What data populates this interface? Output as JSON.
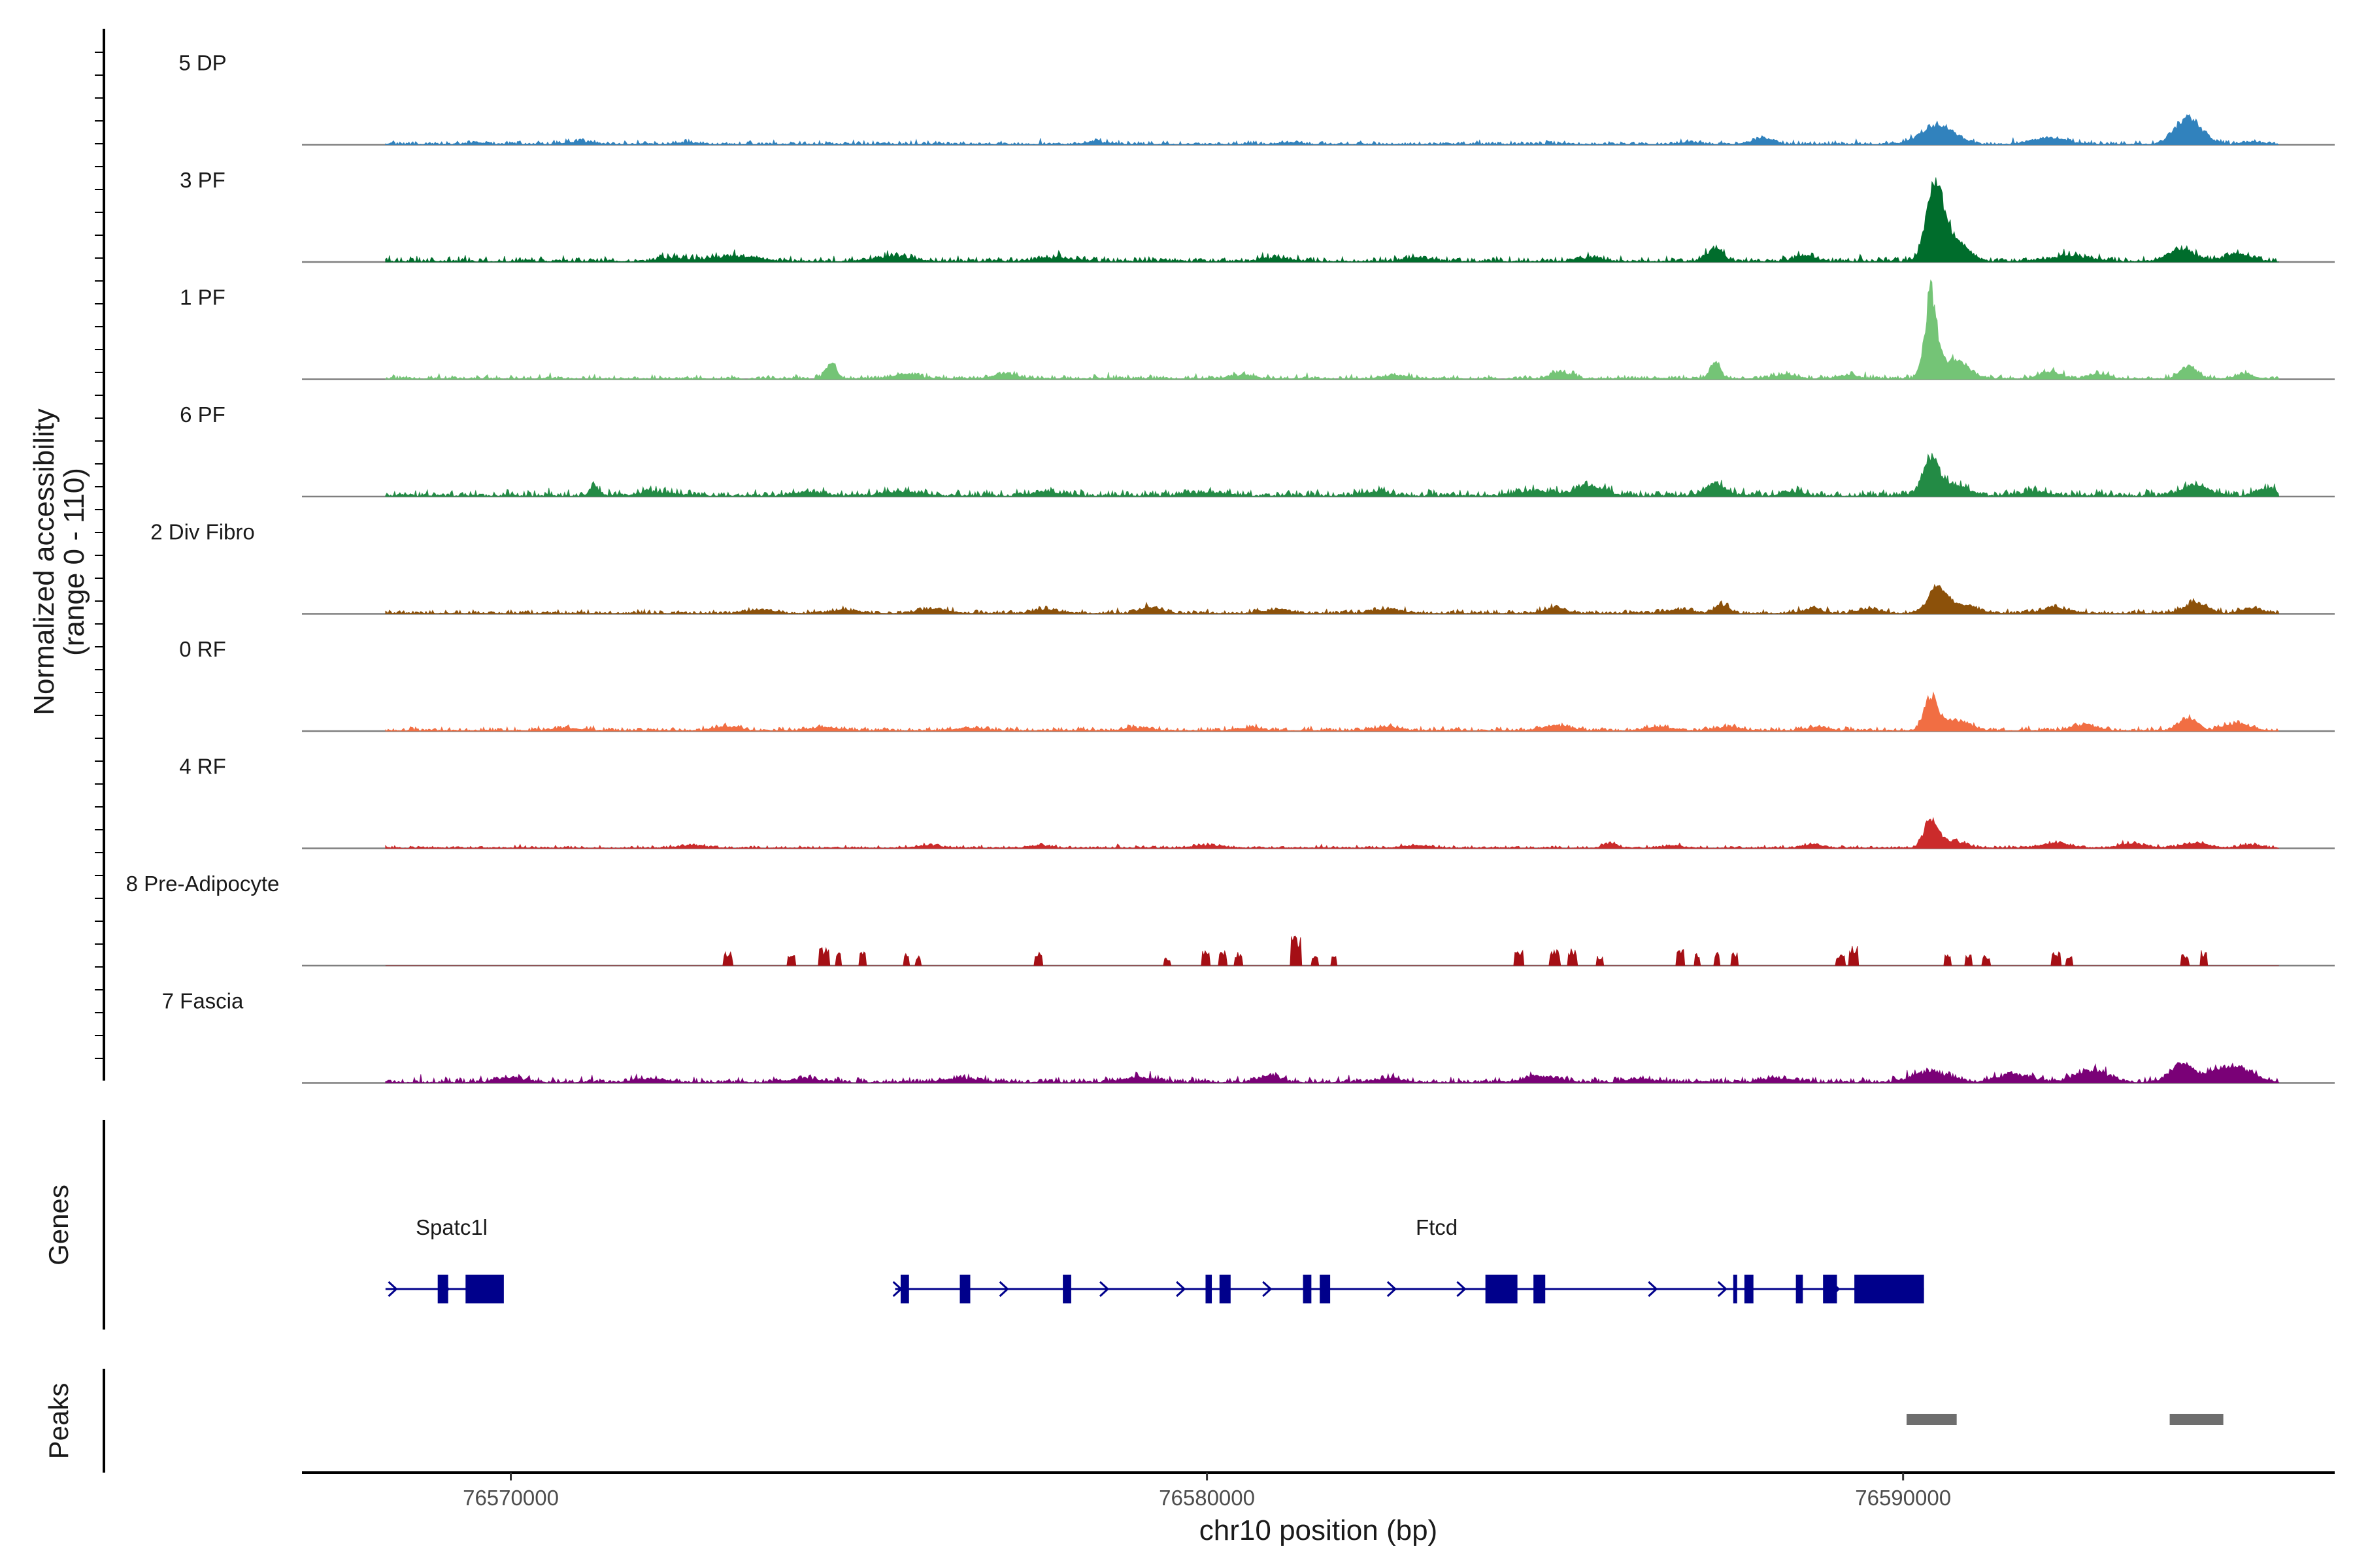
{
  "chart_data": {
    "type": "area",
    "title": "",
    "y_axis_title_line1": "Normalized accessibility",
    "y_axis_title_line2": "(range 0 - 110)",
    "ylim": [
      0,
      110
    ],
    "xlabel": "chr10 position (bp)",
    "x_range": [
      76567000,
      76596200
    ],
    "x_ticks": [
      76570000,
      76580000,
      76590000
    ],
    "x_tick_labels": [
      "76570000",
      "76580000",
      "76590000"
    ],
    "data_start": 76568200,
    "data_end": 76595400,
    "tracks": [
      {
        "name": "5 DP",
        "color": "#3182BD",
        "baseline": 3,
        "noise": 2,
        "spiky": false,
        "peaks": [
          [
            76569500,
            2,
            300
          ],
          [
            76571000,
            3,
            400
          ],
          [
            76572500,
            2,
            300
          ],
          [
            76578400,
            3,
            300
          ],
          [
            76581200,
            2,
            300
          ],
          [
            76586900,
            2,
            300
          ],
          [
            76588000,
            7,
            300
          ],
          [
            76590500,
            22,
            500
          ],
          [
            76592100,
            7,
            500
          ],
          [
            76594100,
            30,
            400
          ],
          [
            76595000,
            3,
            300
          ]
        ]
      },
      {
        "name": "3 PF",
        "color": "#006D2C",
        "baseline": 4,
        "noise": 3,
        "spiky": false,
        "peaks": [
          [
            76572300,
            4,
            400
          ],
          [
            76573200,
            6,
            700
          ],
          [
            76575500,
            6,
            500
          ],
          [
            76577800,
            4,
            500
          ],
          [
            76581000,
            4,
            400
          ],
          [
            76583000,
            4,
            400
          ],
          [
            76585500,
            4,
            400
          ],
          [
            76587300,
            14,
            250
          ],
          [
            76588600,
            6,
            300
          ],
          [
            76590450,
            78,
            250
          ],
          [
            76590700,
            25,
            400
          ],
          [
            76592400,
            6,
            600
          ],
          [
            76594000,
            14,
            400
          ],
          [
            76594800,
            8,
            400
          ]
        ]
      },
      {
        "name": "1 PF",
        "color": "#74C476",
        "baseline": 3,
        "noise": 3,
        "spiky": false,
        "peaks": [
          [
            76574600,
            20,
            150
          ],
          [
            76575700,
            5,
            400
          ],
          [
            76577100,
            5,
            400
          ],
          [
            76580500,
            4,
            400
          ],
          [
            76582700,
            4,
            400
          ],
          [
            76585100,
            8,
            300
          ],
          [
            76587300,
            20,
            150
          ],
          [
            76588300,
            5,
            300
          ],
          [
            76589200,
            4,
            300
          ],
          [
            76590400,
            95,
            180
          ],
          [
            76590750,
            20,
            400
          ],
          [
            76592100,
            8,
            300
          ],
          [
            76592800,
            6,
            300
          ],
          [
            76594100,
            14,
            250
          ],
          [
            76594900,
            5,
            300
          ]
        ]
      },
      {
        "name": "6 PF",
        "color": "#238B45",
        "baseline": 5,
        "noise": 3,
        "spiky": false,
        "peaks": [
          [
            76571200,
            10,
            150
          ],
          [
            76572100,
            4,
            500
          ],
          [
            76574300,
            4,
            500
          ],
          [
            76575600,
            5,
            500
          ],
          [
            76577700,
            4,
            500
          ],
          [
            76580000,
            4,
            500
          ],
          [
            76582400,
            4,
            400
          ],
          [
            76584700,
            6,
            500
          ],
          [
            76585500,
            12,
            400
          ],
          [
            76587300,
            14,
            300
          ],
          [
            76588400,
            5,
            300
          ],
          [
            76590400,
            42,
            250
          ],
          [
            76590750,
            12,
            400
          ],
          [
            76591900,
            5,
            400
          ],
          [
            76594200,
            12,
            400
          ],
          [
            76595200,
            8,
            300
          ]
        ]
      },
      {
        "name": "2 Div Fibro",
        "color": "#8C510A",
        "baseline": 3,
        "noise": 2,
        "spiky": false,
        "peaks": [
          [
            76573600,
            4,
            400
          ],
          [
            76574800,
            4,
            400
          ],
          [
            76576100,
            5,
            400
          ],
          [
            76577700,
            4,
            400
          ],
          [
            76579200,
            7,
            300
          ],
          [
            76581000,
            4,
            400
          ],
          [
            76582600,
            5,
            400
          ],
          [
            76585000,
            7,
            300
          ],
          [
            76586800,
            4,
            400
          ],
          [
            76587400,
            10,
            200
          ],
          [
            76588700,
            5,
            300
          ],
          [
            76589500,
            5,
            300
          ],
          [
            76590500,
            28,
            300
          ],
          [
            76590900,
            8,
            400
          ],
          [
            76592200,
            6,
            400
          ],
          [
            76594200,
            12,
            350
          ],
          [
            76595000,
            6,
            300
          ]
        ]
      },
      {
        "name": "0 RF",
        "color": "#F16E43",
        "baseline": 3,
        "noise": 2,
        "spiky": false,
        "peaks": [
          [
            76570800,
            3,
            400
          ],
          [
            76573100,
            4,
            400
          ],
          [
            76574500,
            4,
            400
          ],
          [
            76576600,
            3,
            400
          ],
          [
            76579000,
            3,
            400
          ],
          [
            76580600,
            3,
            400
          ],
          [
            76582600,
            4,
            400
          ],
          [
            76585000,
            6,
            400
          ],
          [
            76586500,
            4,
            400
          ],
          [
            76587500,
            4,
            400
          ],
          [
            76588800,
            4,
            300
          ],
          [
            76590400,
            38,
            200
          ],
          [
            76590750,
            12,
            400
          ],
          [
            76592600,
            6,
            400
          ],
          [
            76594100,
            15,
            250
          ],
          [
            76594800,
            8,
            400
          ]
        ]
      },
      {
        "name": "4 RF",
        "color": "#CB2B2B",
        "baseline": 2,
        "noise": 2,
        "spiky": false,
        "peaks": [
          [
            76572600,
            3,
            400
          ],
          [
            76576000,
            3,
            400
          ],
          [
            76577600,
            3,
            300
          ],
          [
            76580000,
            3,
            400
          ],
          [
            76583000,
            3,
            400
          ],
          [
            76585800,
            6,
            200
          ],
          [
            76586700,
            3,
            300
          ],
          [
            76588700,
            4,
            300
          ],
          [
            76590400,
            32,
            200
          ],
          [
            76590700,
            8,
            400
          ],
          [
            76592200,
            6,
            400
          ],
          [
            76593300,
            5,
            400
          ],
          [
            76594200,
            6,
            400
          ],
          [
            76595000,
            4,
            300
          ]
        ]
      },
      {
        "name": "8 Pre-Adipocyte",
        "color": "#A50F15",
        "baseline": 0,
        "noise": 0,
        "spiky": true,
        "spikes": [
          [
            76573120,
            14,
            120
          ],
          [
            76574030,
            10,
            130
          ],
          [
            76574500,
            18,
            150
          ],
          [
            76574700,
            16,
            80
          ],
          [
            76575060,
            14,
            100
          ],
          [
            76575680,
            12,
            80
          ],
          [
            76575850,
            10,
            80
          ],
          [
            76577580,
            14,
            110
          ],
          [
            76579430,
            8,
            90
          ],
          [
            76579980,
            16,
            120
          ],
          [
            76580220,
            18,
            110
          ],
          [
            76580450,
            14,
            100
          ],
          [
            76581280,
            30,
            150
          ],
          [
            76581550,
            12,
            80
          ],
          [
            76581830,
            10,
            80
          ],
          [
            76584480,
            15,
            120
          ],
          [
            76585000,
            16,
            150
          ],
          [
            76585250,
            17,
            140
          ],
          [
            76585650,
            10,
            100
          ],
          [
            76586800,
            16,
            120
          ],
          [
            76587050,
            12,
            80
          ],
          [
            76587330,
            14,
            80
          ],
          [
            76587580,
            14,
            80
          ],
          [
            76589100,
            12,
            140
          ],
          [
            76589290,
            20,
            120
          ],
          [
            76590640,
            11,
            110
          ],
          [
            76590940,
            11,
            110
          ],
          [
            76591200,
            11,
            110
          ],
          [
            76592200,
            14,
            140
          ],
          [
            76592390,
            10,
            100
          ],
          [
            76594050,
            12,
            110
          ],
          [
            76594320,
            16,
            90
          ]
        ]
      },
      {
        "name": "7 Fascia",
        "color": "#7A0177",
        "baseline": 4,
        "noise": 3,
        "spiky": false,
        "peaks": [
          [
            76570000,
            5,
            400
          ],
          [
            76572000,
            4,
            500
          ],
          [
            76574200,
            4,
            500
          ],
          [
            76576500,
            4,
            500
          ],
          [
            76579000,
            5,
            500
          ],
          [
            76580900,
            8,
            300
          ],
          [
            76582600,
            5,
            400
          ],
          [
            76584800,
            7,
            500
          ],
          [
            76586200,
            4,
            400
          ],
          [
            76588200,
            5,
            400
          ],
          [
            76590400,
            12,
            500
          ],
          [
            76591600,
            9,
            500
          ],
          [
            76592700,
            13,
            500
          ],
          [
            76594000,
            20,
            350
          ],
          [
            76594700,
            18,
            600
          ]
        ]
      }
    ],
    "genes_track_label": "Genes",
    "peaks_track_label": "Peaks",
    "genes": [
      {
        "name": "Spatc1l",
        "color": "#00008B",
        "start": 76568200,
        "end": 76569800,
        "arrows": [
          76568300,
          76569050
        ],
        "exons": [
          [
            76568950,
            76569100,
            "narrow"
          ],
          [
            76569350,
            76569900,
            "wide"
          ]
        ]
      },
      {
        "name": "Ftcd",
        "color": "#00008B",
        "start": 76575520,
        "end": 76590300,
        "arrows": [
          76575550,
          76577080,
          76578520,
          76579620,
          76580860,
          76582650,
          76583650,
          76586400,
          76587400,
          76589020
        ],
        "exons": [
          [
            76575600,
            76575720,
            "narrow"
          ],
          [
            76576450,
            76576600,
            "narrow"
          ],
          [
            76577930,
            76578050,
            "narrow"
          ],
          [
            76579980,
            76580070,
            "narrow"
          ],
          [
            76580180,
            76580340,
            "narrow"
          ],
          [
            76581380,
            76581500,
            "narrow"
          ],
          [
            76581620,
            76581770,
            "narrow"
          ],
          [
            76584000,
            76584460,
            "wide"
          ],
          [
            76584690,
            76584860,
            "narrow"
          ],
          [
            76587560,
            76587600,
            "narrow"
          ],
          [
            76587720,
            76587850,
            "narrow"
          ],
          [
            76588460,
            76588560,
            "narrow"
          ],
          [
            76588850,
            76589050,
            "narrow"
          ],
          [
            76589300,
            76590300,
            "wide"
          ]
        ]
      }
    ],
    "peaks": [
      {
        "start": 76590050,
        "end": 76590770,
        "color": "#6E6E6E"
      },
      {
        "start": 76593830,
        "end": 76594600,
        "color": "#6E6E6E"
      }
    ]
  }
}
